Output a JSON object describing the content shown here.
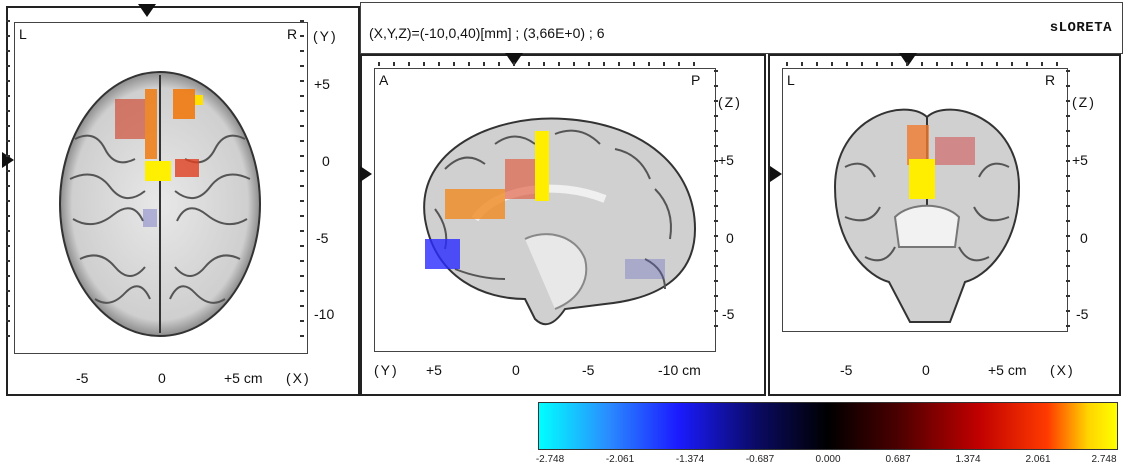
{
  "status": {
    "coords_text": "(X,Y,Z)=(-10,0,40)[mm]  ;  (3,66E+0)  ;  6",
    "method_label": "sLORETA"
  },
  "axial_view": {
    "left_label": "L",
    "right_label": "R",
    "y_axis_label": "(Y)",
    "y_ticks": [
      "+5",
      "0",
      "-5",
      "-10"
    ],
    "x_ticks": [
      "-5",
      "0",
      "+5 cm"
    ],
    "x_axis_label": "(X)"
  },
  "sagittal_view": {
    "left_label": "A",
    "right_label": "P",
    "z_axis_label": "(Z)",
    "z_ticks": [
      "+5",
      "0",
      "-5"
    ],
    "y_axis_label": "(Y)",
    "x_ticks": [
      "+5",
      "0",
      "-5",
      "-10 cm"
    ]
  },
  "coronal_view": {
    "left_label": "L",
    "right_label": "R",
    "z_axis_label": "(Z)",
    "z_ticks": [
      "+5",
      "0",
      "-5"
    ],
    "x_ticks": [
      "-5",
      "0",
      "+5 cm"
    ],
    "x_axis_label": "(X)"
  },
  "colorbar": {
    "ticks": [
      "-2.748",
      "-2.061",
      "-1.374",
      "-0.687",
      "0.000",
      "0.687",
      "1.374",
      "2.061",
      "2.748"
    ],
    "colors": [
      "#00ffff",
      "#1b1bff",
      "#000000",
      "#c00000",
      "#ffff00"
    ]
  }
}
